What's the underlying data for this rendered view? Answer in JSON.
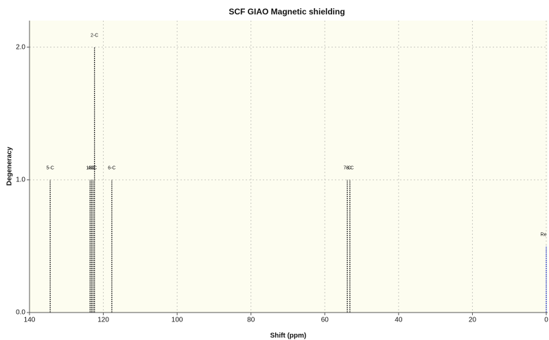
{
  "chart_data": {
    "type": "stick",
    "title": "SCF GIAO Magnetic shielding",
    "x_label": "Shift (ppm)",
    "y_label": "Degeneracy",
    "x": [
      134.4,
      123.6,
      123.2,
      122.8,
      122.4,
      117.7,
      53.9,
      53.2,
      0
    ],
    "values": [
      1,
      1,
      1,
      1,
      2,
      1,
      1,
      1,
      0.5
    ],
    "point_labels": [
      "5-C",
      "1-C",
      "4-C",
      "3-C",
      "2-C",
      "6-C",
      "7-C",
      "8-C",
      "Re"
    ],
    "colors": [
      "#333333",
      "#333333",
      "#333333",
      "#333333",
      "#333333",
      "#333333",
      "#333333",
      "#333333",
      "#3344cc"
    ],
    "xlim": [
      140,
      0
    ],
    "ylim": [
      0,
      2.2
    ],
    "xticks": [
      140,
      120,
      100,
      80,
      60,
      40,
      20,
      0
    ],
    "yticks": [
      {
        "value": 0,
        "label": "0.0"
      },
      {
        "value": 1,
        "label": "1.0"
      },
      {
        "value": 2,
        "label": "2.0"
      }
    ],
    "grid": true
  }
}
